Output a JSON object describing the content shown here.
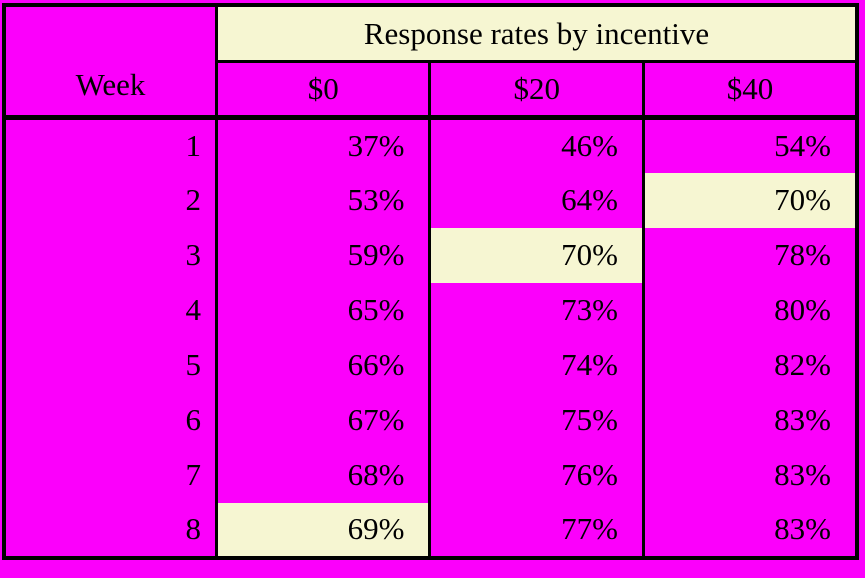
{
  "table": {
    "title": "Response rates by incentive",
    "week_header": "Week",
    "columns": [
      "$0",
      "$20",
      "$40"
    ],
    "rows": [
      {
        "week": "1",
        "values": [
          "37%",
          "46%",
          "54%"
        ],
        "highlight": [
          false,
          false,
          false
        ]
      },
      {
        "week": "2",
        "values": [
          "53%",
          "64%",
          "70%"
        ],
        "highlight": [
          false,
          false,
          true
        ]
      },
      {
        "week": "3",
        "values": [
          "59%",
          "70%",
          "78%"
        ],
        "highlight": [
          false,
          true,
          false
        ]
      },
      {
        "week": "4",
        "values": [
          "65%",
          "73%",
          "80%"
        ],
        "highlight": [
          false,
          false,
          false
        ]
      },
      {
        "week": "5",
        "values": [
          "66%",
          "74%",
          "82%"
        ],
        "highlight": [
          false,
          false,
          false
        ]
      },
      {
        "week": "6",
        "values": [
          "67%",
          "75%",
          "83%"
        ],
        "highlight": [
          false,
          false,
          false
        ]
      },
      {
        "week": "7",
        "values": [
          "68%",
          "76%",
          "83%"
        ],
        "highlight": [
          false,
          false,
          false
        ]
      },
      {
        "week": "8",
        "values": [
          "69%",
          "77%",
          "83%"
        ],
        "highlight": [
          true,
          false,
          false
        ]
      }
    ],
    "colors": {
      "magenta": "#FB00FB",
      "highlight_cream": "#F6F6D2",
      "border_black": "#000000"
    }
  },
  "chart_data": {
    "type": "table",
    "title": "Response rates by incentive",
    "xlabel": "Week",
    "x": [
      1,
      2,
      3,
      4,
      5,
      6,
      7,
      8
    ],
    "series": [
      {
        "name": "$0",
        "values": [
          37,
          53,
          59,
          65,
          66,
          67,
          68,
          69
        ]
      },
      {
        "name": "$20",
        "values": [
          46,
          64,
          70,
          73,
          74,
          75,
          76,
          77
        ]
      },
      {
        "name": "$40",
        "values": [
          54,
          70,
          78,
          80,
          82,
          83,
          83,
          83
        ]
      }
    ],
    "units": "percent",
    "highlighted_cells": [
      {
        "week": 2,
        "column": "$40",
        "value": 70
      },
      {
        "week": 3,
        "column": "$20",
        "value": 70
      },
      {
        "week": 8,
        "column": "$0",
        "value": 69
      }
    ]
  }
}
